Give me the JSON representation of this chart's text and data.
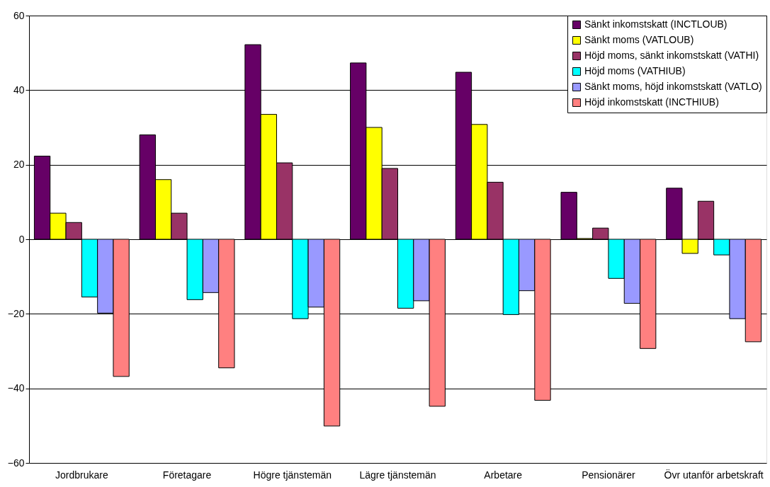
{
  "chart_data": {
    "type": "bar",
    "categories": [
      "Jordbrukare",
      "Företagare",
      "Högre tjänstemän",
      "Lägre tjänstemän",
      "Arbetare",
      "Pensionärer",
      "Övr utanför arbetskraft"
    ],
    "series": [
      {
        "name": "Sänkt inkomstskatt (INCTLOUB)",
        "color": "#660066",
        "values": [
          22.3,
          28,
          52.2,
          47.3,
          44.8,
          12.6,
          13.7
        ]
      },
      {
        "name": "Sänkt moms (VATLOUB)",
        "color": "#ffff00",
        "values": [
          7,
          16,
          33.5,
          30,
          30.8,
          0.2,
          -3.8
        ]
      },
      {
        "name": "Höjd moms, sänkt inkomstskatt (VATHI)",
        "color": "#993366",
        "values": [
          4.5,
          7,
          20.5,
          19,
          15.3,
          3,
          10.2
        ]
      },
      {
        "name": "Höjd moms (VATHIUB)",
        "color": "#00ffff",
        "values": [
          -15.5,
          -16.2,
          -21.3,
          -18.5,
          -20.2,
          -10.5,
          -4.2
        ]
      },
      {
        "name": "Sänkt moms, höjd inkomstskatt (VATLO)",
        "color": "#9999ff",
        "values": [
          -19.8,
          -14.3,
          -18.2,
          -16.5,
          -13.8,
          -17.2,
          -21.3
        ]
      },
      {
        "name": "Höjd inkomstskatt (INCTHIUB)",
        "color": "#ff8080",
        "values": [
          -36.8,
          -34.5,
          -50.1,
          -44.8,
          -43.2,
          -29.3,
          -27.5
        ]
      }
    ],
    "ylim": [
      -60,
      60
    ],
    "yticks": [
      -60,
      -40,
      -20,
      0,
      20,
      40,
      60
    ],
    "grid": "y",
    "legend": "top right"
  }
}
